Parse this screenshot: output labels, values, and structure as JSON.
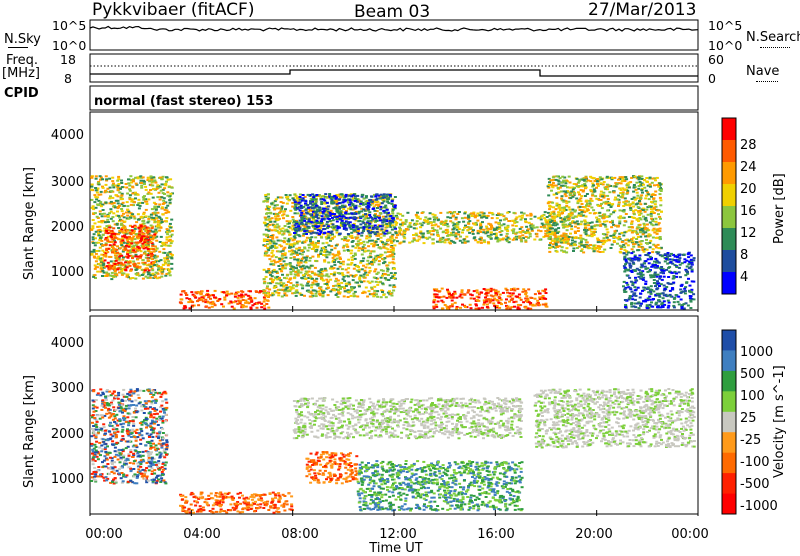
{
  "header": {
    "station": "Pykkvibaer (fitACF)",
    "beam": "Beam 03",
    "date": "27/Mar/2013"
  },
  "top_panel": {
    "left_label": "N.Sky",
    "left_ticks": [
      "10^5",
      "10^0"
    ],
    "right_ticks": [
      "10^5",
      "10^0"
    ],
    "right_label": "N.Search"
  },
  "freq_panel": {
    "left_label_1": "Freq.",
    "left_label_2": "[MHz]",
    "left_ticks": [
      "18",
      "8"
    ],
    "right_ticks": [
      "60",
      "0"
    ],
    "right_label": "Nave",
    "cpid_label": "CPID",
    "cpid_text": "normal (fast stereo) 153"
  },
  "chart_data": [
    {
      "type": "heatmap",
      "name": "power",
      "ylabel": "Slant Range [km]",
      "yticks": [
        "4000",
        "3000",
        "2000",
        "1000"
      ],
      "ylim": [
        200,
        4600
      ],
      "colorbar_label": "Power [dB]",
      "colorbar_ticks": [
        "28",
        "24",
        "20",
        "16",
        "12",
        "8",
        "4"
      ],
      "colorbar_colors": [
        "#ff0000",
        "#ff5a00",
        "#ff9a00",
        "#f0d000",
        "#8cc63e",
        "#2e8b57",
        "#1e4d9e",
        "#0000ff"
      ],
      "regions": [
        {
          "x": [
            0.0,
            3.2
          ],
          "y": [
            900,
            3200
          ],
          "level": "mid"
        },
        {
          "x": [
            0.5,
            2.5
          ],
          "y": [
            1100,
            2100
          ],
          "level": "high"
        },
        {
          "x": [
            3.5,
            7.0
          ],
          "y": [
            250,
            650
          ],
          "level": "high"
        },
        {
          "x": [
            6.8,
            12.0
          ],
          "y": [
            500,
            2800
          ],
          "level": "mid"
        },
        {
          "x": [
            8.0,
            12.0
          ],
          "y": [
            1900,
            2800
          ],
          "level": "low"
        },
        {
          "x": [
            12.0,
            19.0
          ],
          "y": [
            1700,
            2400
          ],
          "level": "mid"
        },
        {
          "x": [
            13.5,
            18.0
          ],
          "y": [
            250,
            700
          ],
          "level": "high"
        },
        {
          "x": [
            18.0,
            22.5
          ],
          "y": [
            1500,
            3200
          ],
          "level": "mid"
        },
        {
          "x": [
            21.0,
            23.8
          ],
          "y": [
            250,
            1500
          ],
          "level": "low"
        }
      ]
    },
    {
      "type": "heatmap",
      "name": "velocity",
      "ylabel": "Slant Range [km]",
      "yticks": [
        "4000",
        "3000",
        "2000",
        "1000"
      ],
      "ylim": [
        200,
        4600
      ],
      "colorbar_label": "Velocity [m s^-1]",
      "colorbar_ticks": [
        "1000",
        "500",
        "100",
        "25",
        "-25",
        "-100",
        "-500",
        "-1000"
      ],
      "colorbar_colors": [
        "#1f4ea8",
        "#3f7fc0",
        "#2f9e3f",
        "#7ccf3a",
        "#c8c8c0",
        "#ff9a1a",
        "#ff6a00",
        "#ff2000",
        "#ff0000"
      ],
      "regions": [
        {
          "x": [
            0.0,
            3.0
          ],
          "y": [
            900,
            3000
          ],
          "level": "mixed"
        },
        {
          "x": [
            3.5,
            8.0
          ],
          "y": [
            250,
            700
          ],
          "level": "negative"
        },
        {
          "x": [
            8.5,
            10.5
          ],
          "y": [
            900,
            1600
          ],
          "level": "negative"
        },
        {
          "x": [
            8.0,
            17.0
          ],
          "y": [
            1900,
            2800
          ],
          "level": "near-zero"
        },
        {
          "x": [
            10.5,
            17.0
          ],
          "y": [
            300,
            1400
          ],
          "level": "positive"
        },
        {
          "x": [
            17.5,
            23.8
          ],
          "y": [
            1700,
            3000
          ],
          "level": "near-zero"
        }
      ]
    }
  ],
  "x_axis": {
    "label": "Time UT",
    "ticks": [
      "00:00",
      "04:00",
      "08:00",
      "12:00",
      "16:00",
      "20:00",
      "00:00"
    ],
    "xlim_hours": [
      0,
      24
    ]
  }
}
